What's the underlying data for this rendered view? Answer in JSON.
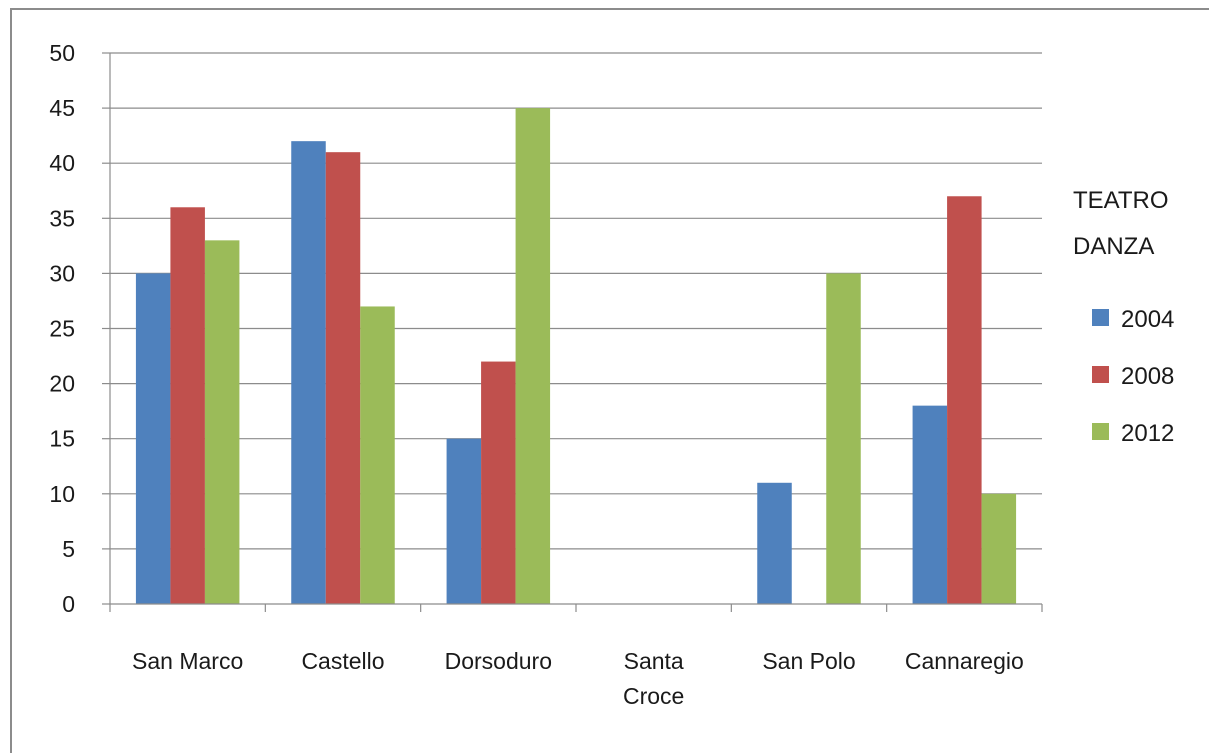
{
  "chart_data": {
    "type": "bar",
    "categories": [
      [
        "San Marco"
      ],
      [
        "Castello"
      ],
      [
        "Dorsoduro"
      ],
      [
        "Santa",
        "Croce"
      ],
      [
        "San Polo"
      ],
      [
        "Cannaregio"
      ]
    ],
    "series": [
      {
        "name": "2004",
        "color": "#4f81bd",
        "values": [
          30,
          42,
          15,
          null,
          11,
          18
        ]
      },
      {
        "name": "2008",
        "color": "#c0504d",
        "values": [
          36,
          41,
          22,
          null,
          null,
          37
        ]
      },
      {
        "name": "2012",
        "color": "#9bbb59",
        "values": [
          33,
          27,
          45,
          null,
          30,
          10
        ]
      }
    ],
    "legend_title": [
      "TEATRO",
      "DANZA"
    ],
    "ylim": [
      0,
      50
    ],
    "yticks": [
      0,
      5,
      10,
      15,
      20,
      25,
      30,
      35,
      40,
      45,
      50
    ],
    "grid": true,
    "legend_position": "right"
  }
}
